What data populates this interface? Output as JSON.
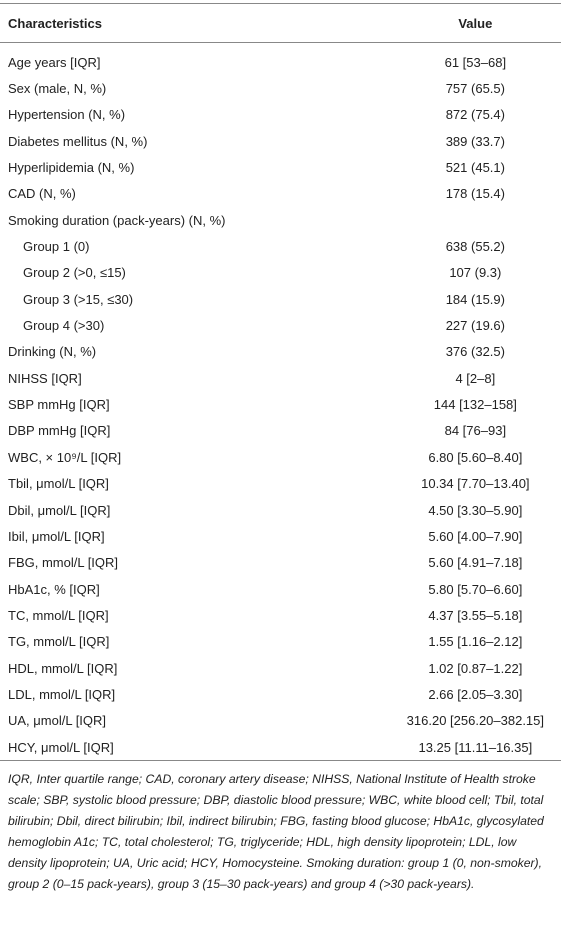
{
  "table": {
    "header": [
      "Characteristics",
      "Value"
    ],
    "rows": [
      {
        "label": "Age years [IQR]",
        "value": "61 [53–68]"
      },
      {
        "label": "Sex (male, N, %)",
        "value": "757 (65.5)"
      },
      {
        "label": "Hypertension (N, %)",
        "value": "872 (75.4)"
      },
      {
        "label": "Diabetes mellitus (N, %)",
        "value": "389 (33.7)"
      },
      {
        "label": "Hyperlipidemia (N, %)",
        "value": "521 (45.1)"
      },
      {
        "label": "CAD (N, %)",
        "value": "178 (15.4)"
      },
      {
        "label": "Smoking duration (pack-years) (N, %)",
        "subrows": [
          {
            "label": "Group 1 (0)",
            "value": "638 (55.2)"
          },
          {
            "label": "Group 2 (>0, ≤15)",
            "value": "107 (9.3)"
          },
          {
            "label": "Group 3 (>15, ≤30)",
            "value": "184 (15.9)"
          },
          {
            "label": "Group 4 (>30)",
            "value": "227 (19.6)"
          }
        ]
      },
      {
        "label": "Drinking (N, %)",
        "value": "376 (32.5)"
      },
      {
        "label": "NIHSS [IQR]",
        "value": "4 [2–8]"
      },
      {
        "label": "SBP mmHg [IQR]",
        "value": "144 [132–158]"
      },
      {
        "label": "DBP mmHg [IQR]",
        "value": "84 [76–93]"
      },
      {
        "label": "WBC, × 10⁹/L [IQR]",
        "value": "6.80 [5.60–8.40]"
      },
      {
        "label": "Tbil, μmol/L [IQR]",
        "value": "10.34 [7.70–13.40]"
      },
      {
        "label": "Dbil, μmol/L [IQR]",
        "value": "4.50 [3.30–5.90]"
      },
      {
        "label": "Ibil, μmol/L [IQR]",
        "value": "5.60 [4.00–7.90]"
      },
      {
        "label": "FBG, mmol/L [IQR]",
        "value": "5.60 [4.91–7.18]"
      },
      {
        "label": "HbA1c, % [IQR]",
        "value": "5.80 [5.70–6.60]"
      },
      {
        "label": "TC, mmol/L [IQR]",
        "value": "4.37 [3.55–5.18]"
      },
      {
        "label": "TG, mmol/L [IQR]",
        "value": "1.55 [1.16–2.12]"
      },
      {
        "label": "HDL, mmol/L [IQR]",
        "value": "1.02 [0.87–1.22]"
      },
      {
        "label": "LDL, mmol/L [IQR]",
        "value": "2.66 [2.05–3.30]"
      },
      {
        "label": "UA, μmol/L [IQR]",
        "value": "316.20 [256.20–382.15]"
      },
      {
        "label": "HCY, μmol/L [IQR]",
        "value": "13.25 [11.11–16.35]"
      }
    ],
    "footnote": "IQR, Inter quartile range; CAD, coronary artery disease; NIHSS, National Institute of Health stroke scale; SBP, systolic blood pressure; DBP, diastolic blood pressure; WBC, white blood cell; Tbil, total bilirubin; Dbil, direct bilirubin; Ibil, indirect bilirubin; FBG, fasting blood glucose; HbA1c, glycosylated hemoglobin A1c; TC, total cholesterol; TG, triglyceride; HDL, high density lipoprotein; LDL, low density lipoprotein; UA, Uric acid; HCY, Homocysteine. Smoking duration: group 1 (0, non-smoker), group 2 (0–15 pack-years), group 3 (15–30 pack-years) and group 4 (>30 pack-years)."
  }
}
